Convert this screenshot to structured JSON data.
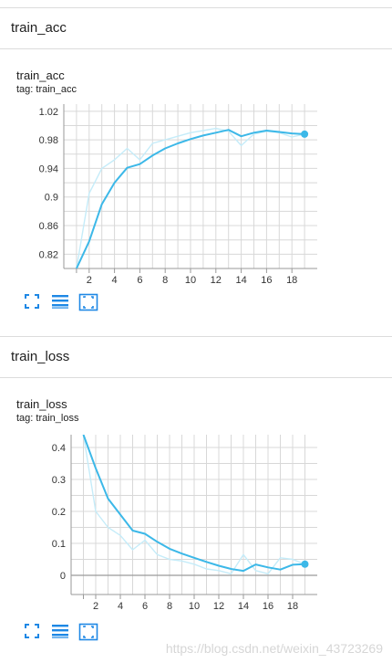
{
  "sections": [
    {
      "title": "train_acc",
      "card_title": "train_acc",
      "card_tag": "tag: train_acc"
    },
    {
      "title": "train_loss",
      "card_title": "train_loss",
      "card_tag": "tag: train_loss"
    }
  ],
  "toolbar": {
    "expand_icon": "fullscreen-icon",
    "data_icon": "list-lines-icon",
    "fit_icon": "fit-domain-icon"
  },
  "colors": {
    "smoothed": "#3cb8e8",
    "raw": "#c5ecf9",
    "grid": "#d8d8d8"
  },
  "watermark": "https://blog.csdn.net/weixin_43723269",
  "chart_data": [
    {
      "type": "line",
      "title": "train_acc",
      "xlabel": "",
      "ylabel": "",
      "x_ticks": [
        2,
        4,
        6,
        8,
        10,
        12,
        14,
        16,
        18
      ],
      "y_ticks": [
        "0.82",
        "0.86",
        "0.9",
        "0.94",
        "0.98",
        "1.02"
      ],
      "xlim": [
        0,
        20
      ],
      "ylim": [
        0.8,
        1.03
      ],
      "grid": true,
      "series": [
        {
          "x": [
            1,
            2,
            3,
            4,
            5,
            6,
            7,
            8,
            9,
            10,
            11,
            12,
            13,
            14,
            15,
            16,
            17,
            18,
            19
          ],
          "values": [
            0.8,
            0.905,
            0.94,
            0.952,
            0.968,
            0.952,
            0.975,
            0.98,
            0.985,
            0.99,
            0.993,
            0.996,
            0.992,
            0.972,
            0.988,
            0.992,
            0.99,
            0.984,
            0.988
          ]
        },
        {
          "x": [
            1,
            2,
            3,
            4,
            5,
            6,
            7,
            8,
            9,
            10,
            11,
            12,
            13,
            14,
            15,
            16,
            17,
            18,
            19
          ],
          "values": [
            0.8,
            0.838,
            0.89,
            0.92,
            0.941,
            0.946,
            0.958,
            0.968,
            0.975,
            0.981,
            0.986,
            0.99,
            0.994,
            0.985,
            0.99,
            0.993,
            0.991,
            0.989,
            0.988
          ]
        }
      ]
    },
    {
      "type": "line",
      "title": "train_loss",
      "xlabel": "",
      "ylabel": "",
      "x_ticks": [
        2,
        4,
        6,
        8,
        10,
        12,
        14,
        16,
        18
      ],
      "y_ticks": [
        "0",
        "0.1",
        "0.2",
        "0.3",
        "0.4"
      ],
      "xlim": [
        0,
        20
      ],
      "ylim": [
        -0.06,
        0.44
      ],
      "grid": true,
      "series": [
        {
          "x": [
            1,
            2,
            3,
            4,
            5,
            6,
            7,
            8,
            9,
            10,
            11,
            12,
            13,
            14,
            15,
            16,
            17,
            18,
            19
          ],
          "values": [
            0.44,
            0.2,
            0.15,
            0.125,
            0.08,
            0.11,
            0.065,
            0.05,
            0.045,
            0.035,
            0.02,
            0.015,
            0.005,
            0.065,
            0.015,
            0.005,
            0.055,
            0.05,
            0.035
          ]
        },
        {
          "x": [
            1,
            2,
            3,
            4,
            5,
            6,
            7,
            8,
            9,
            10,
            11,
            12,
            13,
            14,
            15,
            16,
            17,
            18,
            19
          ],
          "values": [
            0.44,
            0.335,
            0.24,
            0.19,
            0.14,
            0.13,
            0.105,
            0.083,
            0.068,
            0.055,
            0.042,
            0.03,
            0.02,
            0.014,
            0.034,
            0.025,
            0.018,
            0.033,
            0.035
          ]
        }
      ]
    }
  ]
}
